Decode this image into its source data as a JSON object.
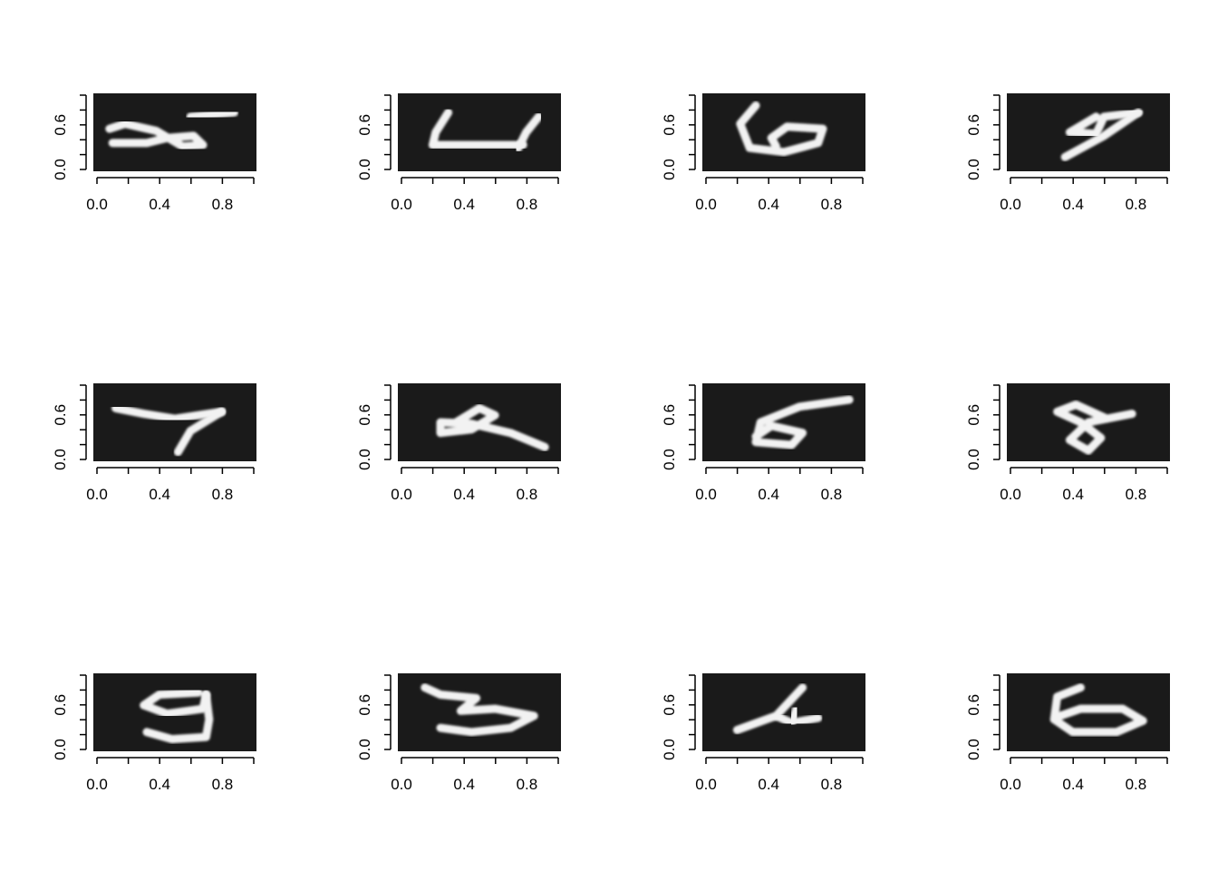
{
  "chart_data": [
    {
      "type": "heatmap",
      "digit": "5",
      "xticks": [
        "0.0",
        "0.4",
        "0.8"
      ],
      "yticks": [
        "0.0",
        "0.6"
      ],
      "xlim": [
        0,
        1
      ],
      "ylim": [
        0,
        1
      ],
      "strokes": [
        [
          [
            0.08,
            0.55
          ],
          [
            0.18,
            0.62
          ],
          [
            0.38,
            0.52
          ],
          [
            0.55,
            0.3
          ],
          [
            0.68,
            0.32
          ],
          [
            0.62,
            0.45
          ],
          [
            0.45,
            0.42
          ],
          [
            0.32,
            0.35
          ],
          [
            0.1,
            0.35
          ]
        ],
        [
          [
            0.6,
            0.72
          ],
          [
            0.88,
            0.78
          ]
        ]
      ]
    },
    {
      "type": "heatmap",
      "digit": "4",
      "xticks": [
        "0.0",
        "0.4",
        "0.8"
      ],
      "yticks": [
        "0.0",
        "0.6"
      ],
      "xlim": [
        0,
        1
      ],
      "ylim": [
        0,
        1
      ],
      "strokes": [
        [
          [
            0.3,
            0.78
          ],
          [
            0.22,
            0.5
          ],
          [
            0.2,
            0.32
          ],
          [
            0.78,
            0.32
          ]
        ],
        [
          [
            0.88,
            0.72
          ],
          [
            0.8,
            0.5
          ],
          [
            0.75,
            0.28
          ]
        ]
      ]
    },
    {
      "type": "heatmap",
      "digit": "6",
      "xticks": [
        "0.0",
        "0.4",
        "0.8"
      ],
      "yticks": [
        "0.0",
        "0.6"
      ],
      "xlim": [
        0,
        1
      ],
      "ylim": [
        0,
        1
      ],
      "strokes": [
        [
          [
            0.32,
            0.88
          ],
          [
            0.22,
            0.62
          ],
          [
            0.28,
            0.28
          ],
          [
            0.5,
            0.22
          ],
          [
            0.72,
            0.35
          ],
          [
            0.75,
            0.55
          ],
          [
            0.52,
            0.58
          ],
          [
            0.42,
            0.42
          ],
          [
            0.45,
            0.3
          ]
        ]
      ]
    },
    {
      "type": "heatmap",
      "digit": "9",
      "xticks": [
        "0.0",
        "0.4",
        "0.8"
      ],
      "yticks": [
        "0.0",
        "0.6"
      ],
      "xlim": [
        0,
        1
      ],
      "ylim": [
        0,
        1
      ],
      "strokes": [
        [
          [
            0.55,
            0.72
          ],
          [
            0.38,
            0.5
          ],
          [
            0.55,
            0.48
          ],
          [
            0.6,
            0.72
          ],
          [
            0.82,
            0.78
          ]
        ],
        [
          [
            0.82,
            0.78
          ],
          [
            0.6,
            0.45
          ],
          [
            0.35,
            0.15
          ]
        ]
      ]
    },
    {
      "type": "heatmap",
      "digit": "7",
      "xticks": [
        "0.0",
        "0.4",
        "0.8"
      ],
      "yticks": [
        "0.0",
        "0.6"
      ],
      "xlim": [
        0,
        1
      ],
      "ylim": [
        0,
        1
      ],
      "strokes": [
        [
          [
            0.12,
            0.7
          ],
          [
            0.3,
            0.62
          ],
          [
            0.5,
            0.55
          ],
          [
            0.8,
            0.65
          ]
        ],
        [
          [
            0.8,
            0.65
          ],
          [
            0.6,
            0.38
          ],
          [
            0.52,
            0.08
          ]
        ]
      ]
    },
    {
      "type": "heatmap",
      "digit": "2",
      "xticks": [
        "0.0",
        "0.4",
        "0.8"
      ],
      "yticks": [
        "0.0",
        "0.6"
      ],
      "xlim": [
        0,
        1
      ],
      "ylim": [
        0,
        1
      ],
      "strokes": [
        [
          [
            0.35,
            0.5
          ],
          [
            0.5,
            0.7
          ],
          [
            0.6,
            0.6
          ],
          [
            0.45,
            0.4
          ],
          [
            0.25,
            0.35
          ],
          [
            0.25,
            0.5
          ],
          [
            0.45,
            0.48
          ],
          [
            0.7,
            0.35
          ],
          [
            0.92,
            0.15
          ]
        ]
      ]
    },
    {
      "type": "heatmap",
      "digit": "6",
      "xticks": [
        "0.0",
        "0.4",
        "0.8"
      ],
      "yticks": [
        "0.0",
        "0.6"
      ],
      "xlim": [
        0,
        1
      ],
      "ylim": [
        0,
        1
      ],
      "strokes": [
        [
          [
            0.92,
            0.82
          ],
          [
            0.6,
            0.72
          ],
          [
            0.35,
            0.5
          ],
          [
            0.32,
            0.22
          ],
          [
            0.55,
            0.18
          ],
          [
            0.62,
            0.35
          ],
          [
            0.42,
            0.45
          ],
          [
            0.32,
            0.3
          ]
        ]
      ]
    },
    {
      "type": "heatmap",
      "digit": "8",
      "xticks": [
        "0.0",
        "0.4",
        "0.8"
      ],
      "yticks": [
        "0.0",
        "0.6"
      ],
      "xlim": [
        0,
        1
      ],
      "ylim": [
        0,
        1
      ],
      "strokes": [
        [
          [
            0.62,
            0.55
          ],
          [
            0.42,
            0.75
          ],
          [
            0.3,
            0.65
          ],
          [
            0.45,
            0.5
          ],
          [
            0.58,
            0.28
          ],
          [
            0.5,
            0.1
          ],
          [
            0.38,
            0.25
          ],
          [
            0.5,
            0.5
          ],
          [
            0.78,
            0.62
          ]
        ]
      ]
    },
    {
      "type": "heatmap",
      "digit": "9",
      "xticks": [
        "0.0",
        "0.4",
        "0.8"
      ],
      "yticks": [
        "0.0",
        "0.6"
      ],
      "xlim": [
        0,
        1
      ],
      "ylim": [
        0,
        1
      ],
      "strokes": [
        [
          [
            0.65,
            0.78
          ],
          [
            0.4,
            0.75
          ],
          [
            0.3,
            0.6
          ],
          [
            0.45,
            0.48
          ],
          [
            0.68,
            0.55
          ],
          [
            0.7,
            0.75
          ]
        ],
        [
          [
            0.7,
            0.75
          ],
          [
            0.72,
            0.4
          ],
          [
            0.7,
            0.15
          ],
          [
            0.48,
            0.12
          ],
          [
            0.32,
            0.22
          ]
        ]
      ]
    },
    {
      "type": "heatmap",
      "digit": "3",
      "xticks": [
        "0.0",
        "0.4",
        "0.8"
      ],
      "yticks": [
        "0.0",
        "0.6"
      ],
      "xlim": [
        0,
        1
      ],
      "ylim": [
        0,
        1
      ],
      "strokes": [
        [
          [
            0.15,
            0.85
          ],
          [
            0.25,
            0.75
          ],
          [
            0.48,
            0.7
          ],
          [
            0.38,
            0.52
          ],
          [
            0.6,
            0.55
          ],
          [
            0.85,
            0.45
          ],
          [
            0.7,
            0.28
          ],
          [
            0.45,
            0.22
          ],
          [
            0.25,
            0.28
          ]
        ]
      ]
    },
    {
      "type": "heatmap",
      "digit": "4",
      "xticks": [
        "0.0",
        "0.4",
        "0.8"
      ],
      "yticks": [
        "0.0",
        "0.6"
      ],
      "xlim": [
        0,
        1
      ],
      "ylim": [
        0,
        1
      ],
      "strokes": [
        [
          [
            0.2,
            0.25
          ],
          [
            0.45,
            0.45
          ],
          [
            0.62,
            0.85
          ]
        ],
        [
          [
            0.45,
            0.45
          ],
          [
            0.55,
            0.35
          ],
          [
            0.72,
            0.42
          ]
        ],
        [
          [
            0.55,
            0.35
          ],
          [
            0.58,
            0.55
          ]
        ]
      ]
    },
    {
      "type": "heatmap",
      "digit": "6",
      "xticks": [
        "0.0",
        "0.4",
        "0.8"
      ],
      "yticks": [
        "0.0",
        "0.6"
      ],
      "xlim": [
        0,
        1
      ],
      "ylim": [
        0,
        1
      ],
      "strokes": [
        [
          [
            0.45,
            0.85
          ],
          [
            0.3,
            0.72
          ],
          [
            0.28,
            0.4
          ],
          [
            0.4,
            0.22
          ],
          [
            0.68,
            0.22
          ],
          [
            0.85,
            0.38
          ],
          [
            0.72,
            0.55
          ],
          [
            0.45,
            0.55
          ],
          [
            0.32,
            0.45
          ]
        ]
      ]
    }
  ]
}
